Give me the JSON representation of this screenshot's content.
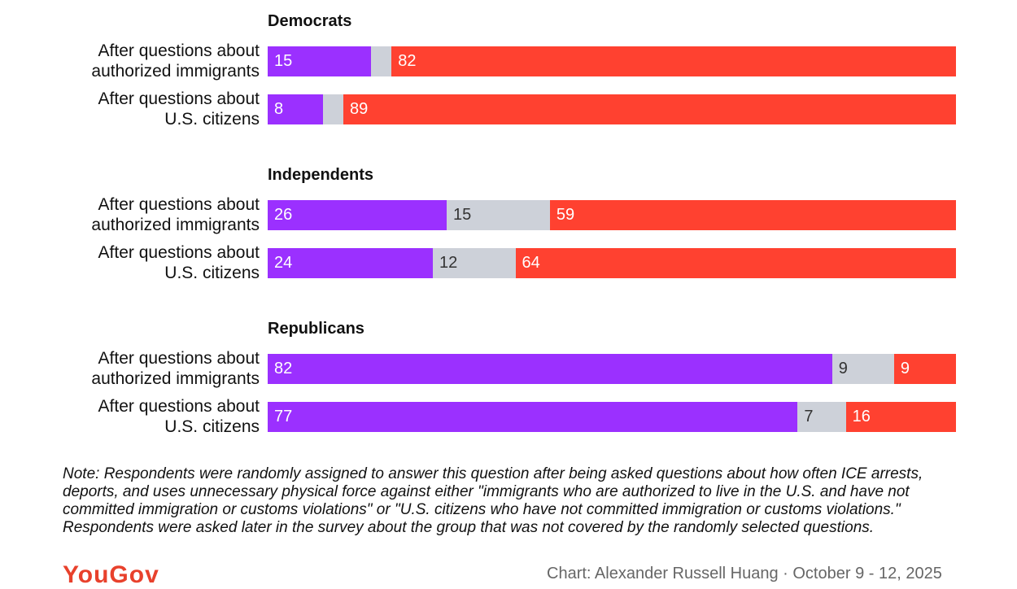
{
  "chart_data": {
    "type": "bar",
    "orientation": "horizontal-stacked-100",
    "series_colors": [
      "#9b30ff",
      "#cdd1d9",
      "#ff4130"
    ],
    "groups": [
      {
        "title": "Democrats",
        "rows": [
          {
            "label": [
              "After questions about",
              "authorized immigrants"
            ],
            "values": [
              15,
              3,
              82
            ],
            "labels": [
              "15",
              "",
              "82"
            ]
          },
          {
            "label": [
              "After questions about",
              "U.S. citizens"
            ],
            "values": [
              8,
              3,
              89
            ],
            "labels": [
              "8",
              "",
              "89"
            ]
          }
        ]
      },
      {
        "title": "Independents",
        "rows": [
          {
            "label": [
              "After questions about",
              "authorized immigrants"
            ],
            "values": [
              26,
              15,
              59
            ],
            "labels": [
              "26",
              "15",
              "59"
            ]
          },
          {
            "label": [
              "After questions about",
              "U.S. citizens"
            ],
            "values": [
              24,
              12,
              64
            ],
            "labels": [
              "24",
              "12",
              "64"
            ]
          }
        ]
      },
      {
        "title": "Republicans",
        "rows": [
          {
            "label": [
              "After questions about",
              "authorized immigrants"
            ],
            "values": [
              82,
              9,
              9
            ],
            "labels": [
              "82",
              "9",
              "9"
            ]
          },
          {
            "label": [
              "After questions about",
              "U.S. citizens"
            ],
            "values": [
              77,
              7,
              16
            ],
            "labels": [
              "77",
              "7",
              "16"
            ]
          }
        ]
      }
    ]
  },
  "note": "Note: Respondents were randomly assigned to answer this question after being asked questions about how often ICE arrests, deports, and uses unnecessary physical force against either \"immigrants who are authorized to live in the U.S. and have not committed immigration or customs violations\" or \"U.S. citizens who have not committed immigration or customs violations.\" Respondents were asked later in the survey about the group that was not covered by the randomly selected questions.",
  "logo": "YouGov",
  "credit": "Chart: Alexander Russell Huang · October 9 - 12, 2025"
}
